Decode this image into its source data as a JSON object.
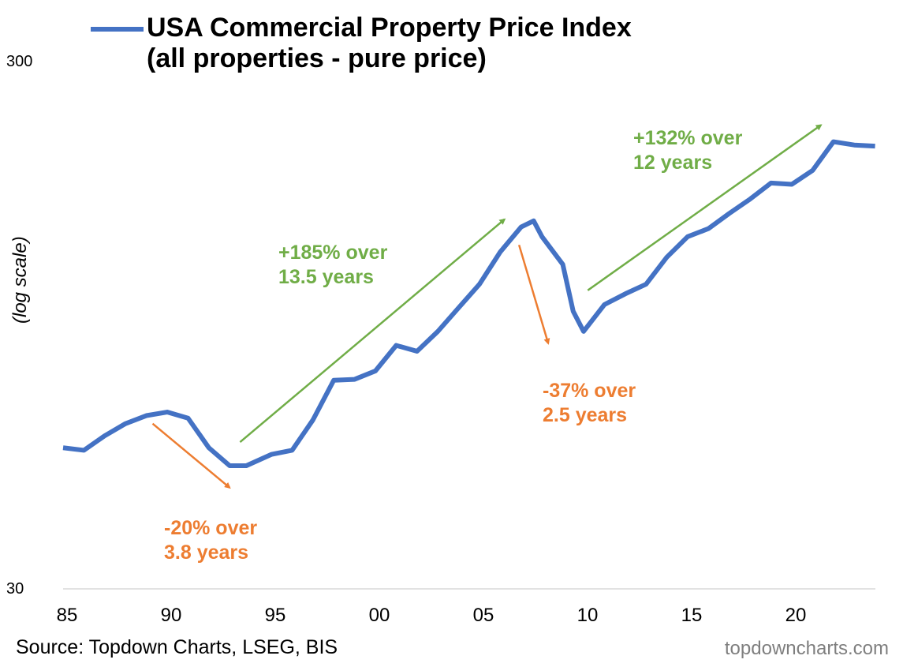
{
  "chart_data": {
    "type": "line",
    "title": "USA Commercial Property Price Index (all properties - pure price)",
    "legend": [
      {
        "name": "USA Commercial Property Price Index",
        "line2": "(all properties - pure price)",
        "color": "#4472C4"
      }
    ],
    "legend_placement": "top",
    "ylabel": "(log scale)",
    "y_scale": "log",
    "ylim": [
      30,
      300
    ],
    "y_ticks": [
      "30",
      "300"
    ],
    "xlim": [
      1985,
      2024.2
    ],
    "x_ticks": [
      {
        "year": 1985,
        "label": "85"
      },
      {
        "year": 1990,
        "label": "90"
      },
      {
        "year": 1995,
        "label": "95"
      },
      {
        "year": 2000,
        "label": "00"
      },
      {
        "year": 2005,
        "label": "05"
      },
      {
        "year": 2010,
        "label": "10"
      },
      {
        "year": 2015,
        "label": "15"
      },
      {
        "year": 2020,
        "label": "20"
      }
    ],
    "grid": false,
    "series": [
      {
        "name": "USA Commercial Property Price Index",
        "color": "#4472C4",
        "x": [
          1985,
          1986,
          1987,
          1988,
          1989,
          1990,
          1991,
          1992,
          1993,
          1993.8,
          1995,
          1996,
          1997,
          1998,
          1999,
          2000,
          2001,
          2002,
          2003,
          2004,
          2005,
          2006,
          2007,
          2007.6,
          2008,
          2009,
          2009.5,
          2010,
          2011,
          2012,
          2013,
          2014,
          2015,
          2016,
          2017,
          2018,
          2019,
          2020,
          2021,
          2022,
          2023,
          2024
        ],
        "y": [
          55.6,
          55,
          58.6,
          61.8,
          64,
          65,
          63.3,
          55.6,
          51.4,
          51.4,
          54,
          55,
          62.8,
          74.7,
          75,
          77.8,
          87,
          84.8,
          92.5,
          102.6,
          113.7,
          131,
          146,
          150,
          140,
          124,
          101,
          92.5,
          104,
          109,
          113.7,
          128,
          140,
          145,
          155,
          165,
          177,
          176,
          187,
          212,
          209,
          208
        ]
      }
    ],
    "annotations": [
      {
        "text1": "-20% over",
        "text2": "3.8 years",
        "color": "#ED7D31",
        "from": [
          1989.3,
          61.8
        ],
        "to": [
          1993.0,
          46.7
        ]
      },
      {
        "text1": "+185% over",
        "text2": "13.5 years",
        "color": "#70AD47",
        "from": [
          1993.5,
          57
        ],
        "to": [
          2006.2,
          151
        ]
      },
      {
        "text1": "-37% over",
        "text2": "2.5 years",
        "color": "#ED7D31",
        "from": [
          2006.9,
          135
        ],
        "to": [
          2008.3,
          87.8
        ]
      },
      {
        "text1": "+132% over",
        "text2": "12 years",
        "color": "#70AD47",
        "from": [
          2010.2,
          110.7
        ],
        "to": [
          2021.4,
          228
        ]
      }
    ]
  },
  "footer": {
    "source": "Source: Topdown Charts, LSEG, BIS",
    "brand": "topdowncharts.com"
  }
}
